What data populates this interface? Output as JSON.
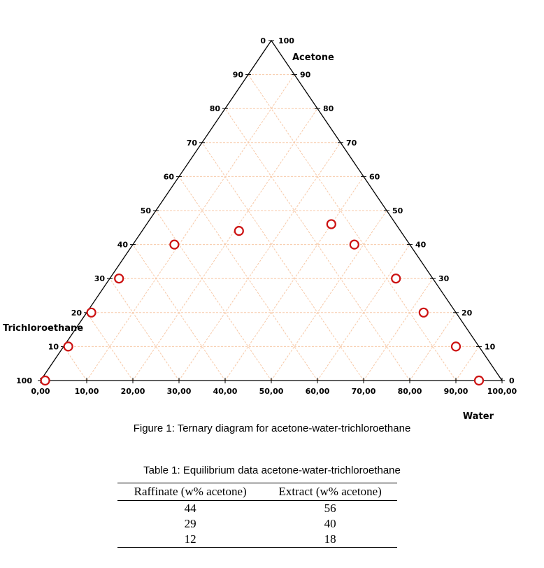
{
  "diagram": {
    "top_label": "Acetone",
    "left_label": "Trichloroethane",
    "right_label": "Water",
    "apex_labels": {
      "top_left": "0",
      "top_right": "100",
      "bottom_left": "100",
      "bottom_right": "0"
    },
    "left_ticks": [
      "10",
      "20",
      "30",
      "40",
      "50",
      "60",
      "70",
      "80",
      "90"
    ],
    "right_ticks": [
      "90",
      "80",
      "70",
      "60",
      "50",
      "40",
      "30",
      "20",
      "10"
    ],
    "bottom_ticks": [
      "0,00",
      "10,00",
      "20,00",
      "30,00",
      "40,00",
      "50,00",
      "60,00",
      "70,00",
      "80,00",
      "90,00",
      "100,00"
    ],
    "grid_color": "#f7c9a8",
    "point_color": "#cc1111",
    "points": [
      {
        "acetone": 44,
        "water": 21
      },
      {
        "acetone": 40,
        "water": 9
      },
      {
        "acetone": 30,
        "water": 2
      },
      {
        "acetone": 20,
        "water": 1
      },
      {
        "acetone": 10,
        "water": 1
      },
      {
        "acetone": 0,
        "water": 1
      },
      {
        "acetone": 46,
        "water": 40
      },
      {
        "acetone": 40,
        "water": 48
      },
      {
        "acetone": 30,
        "water": 62
      },
      {
        "acetone": 20,
        "water": 73
      },
      {
        "acetone": 10,
        "water": 85
      },
      {
        "acetone": 0,
        "water": 95
      }
    ]
  },
  "figure_caption": "Figure 1: Ternary diagram for acetone-water-trichloroethane",
  "table_caption": "Table 1: Equilibrium data acetone-water-trichloroethane",
  "table": {
    "headers": [
      "Raffinate (w% acetone)",
      "Extract (w% acetone)"
    ],
    "rows": [
      [
        "44",
        "56"
      ],
      [
        "29",
        "40"
      ],
      [
        "12",
        "18"
      ]
    ]
  }
}
